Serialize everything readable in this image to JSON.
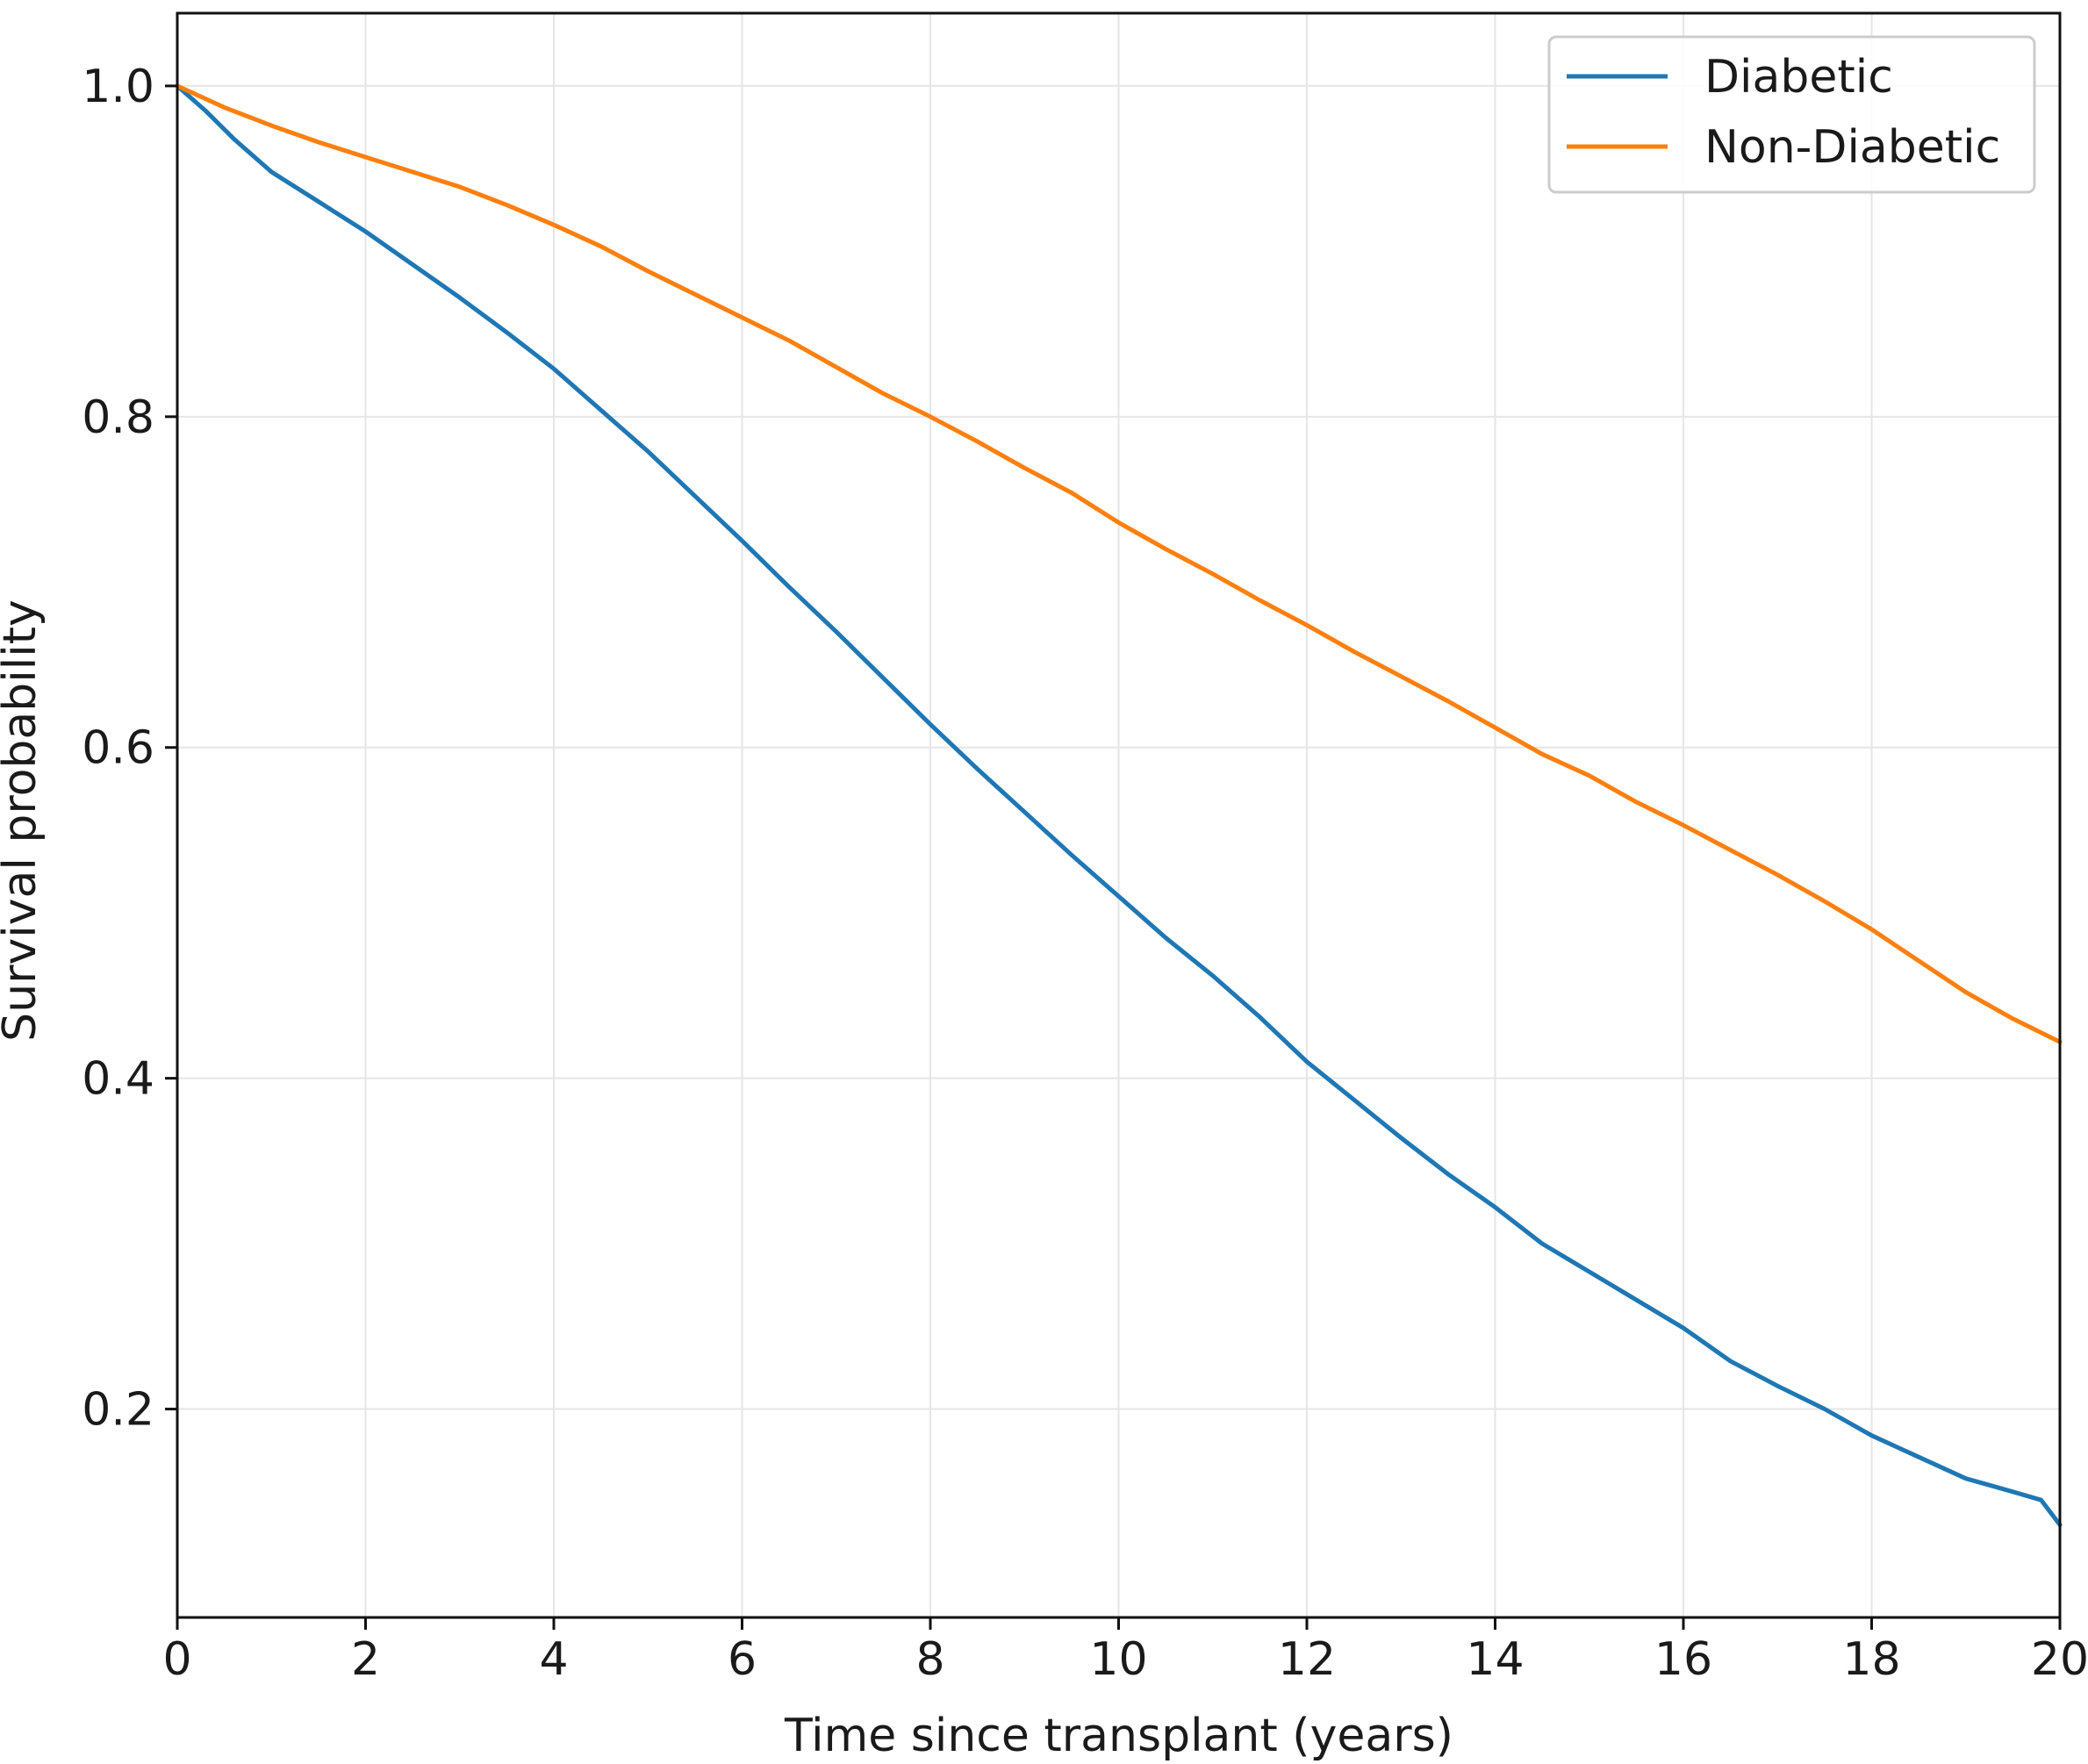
{
  "chart_data": {
    "type": "line",
    "title": "",
    "xlabel": "Time since transplant (years)",
    "ylabel": "Survival probability",
    "xlim": [
      0,
      20
    ],
    "ylim": [
      0.074,
      1.044
    ],
    "xticks": [
      "0",
      "2",
      "4",
      "6",
      "8",
      "10",
      "12",
      "14",
      "16",
      "18",
      "20"
    ],
    "yticks": [
      "0.2",
      "0.4",
      "0.6",
      "0.8",
      "1.0"
    ],
    "grid": true,
    "legend_position": "top-right",
    "series": [
      {
        "name": "Diabetic",
        "color": "#1f77b4",
        "x": [
          0,
          0.3,
          0.6,
          1,
          1.5,
          2,
          2.5,
          3,
          3.5,
          4,
          4.5,
          5,
          5.5,
          6,
          6.5,
          7,
          7.5,
          8,
          8.5,
          9,
          9.5,
          10,
          10.5,
          11,
          11.5,
          12,
          12.5,
          13,
          13.5,
          14,
          14.5,
          15,
          15.5,
          16,
          16.5,
          17,
          17.5,
          18,
          18.5,
          19,
          19.5,
          19.8,
          20
        ],
        "y": [
          1.0,
          0.985,
          0.968,
          0.948,
          0.93,
          0.912,
          0.892,
          0.872,
          0.851,
          0.829,
          0.804,
          0.779,
          0.752,
          0.725,
          0.697,
          0.67,
          0.642,
          0.614,
          0.587,
          0.561,
          0.535,
          0.51,
          0.485,
          0.462,
          0.437,
          0.41,
          0.387,
          0.364,
          0.342,
          0.322,
          0.3,
          0.283,
          0.266,
          0.249,
          0.229,
          0.214,
          0.2,
          0.184,
          0.171,
          0.158,
          0.15,
          0.145,
          0.13
        ]
      },
      {
        "name": "Non-Diabetic",
        "color": "#ff7f0e",
        "x": [
          0,
          0.5,
          1,
          1.5,
          2,
          2.5,
          3,
          3.5,
          4,
          4.5,
          5,
          5.5,
          6,
          6.5,
          7,
          7.5,
          8,
          8.5,
          9,
          9.5,
          10,
          10.5,
          11,
          11.5,
          12,
          12.5,
          13,
          13.5,
          14,
          14.5,
          15,
          15.5,
          16,
          16.5,
          17,
          17.5,
          18,
          18.5,
          19,
          19.5,
          20
        ],
        "y": [
          1.0,
          0.987,
          0.976,
          0.966,
          0.957,
          0.948,
          0.939,
          0.928,
          0.916,
          0.903,
          0.888,
          0.874,
          0.86,
          0.846,
          0.83,
          0.814,
          0.8,
          0.785,
          0.769,
          0.754,
          0.736,
          0.72,
          0.705,
          0.689,
          0.674,
          0.658,
          0.643,
          0.628,
          0.612,
          0.596,
          0.583,
          0.567,
          0.553,
          0.538,
          0.523,
          0.507,
          0.49,
          0.471,
          0.452,
          0.436,
          0.422
        ]
      }
    ]
  }
}
